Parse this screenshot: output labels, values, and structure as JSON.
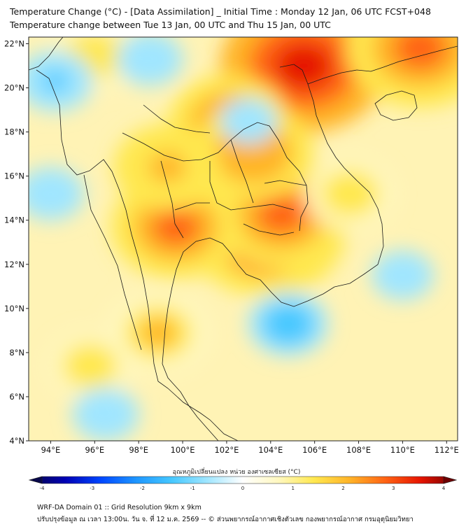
{
  "titles": {
    "line1": "Temperature Change (°C) - [Data Assimilation] _ Initial Time : Monday 12 Jan, 06 UTC FCST+048",
    "line2": "Temperature change between Tue 13 Jan, 00 UTC and Thu 15 Jan, 00 UTC"
  },
  "axes": {
    "lat_labels": [
      "22°N",
      "20°N",
      "18°N",
      "16°N",
      "14°N",
      "12°N",
      "10°N",
      "8°N",
      "6°N",
      "4°N"
    ],
    "lon_labels": [
      "94°E",
      "96°E",
      "98°E",
      "100°E",
      "102°E",
      "104°E",
      "106°E",
      "108°E",
      "110°E",
      "112°E"
    ],
    "lat_values": [
      22,
      20,
      18,
      16,
      14,
      12,
      10,
      8,
      6,
      4
    ],
    "lon_values": [
      94,
      96,
      98,
      100,
      102,
      104,
      106,
      108,
      110,
      112
    ],
    "lat_range": [
      4,
      22.3
    ],
    "lon_range": [
      93,
      112.5
    ]
  },
  "colorbar": {
    "title": "อุณหภูมิเปลี่ยนแปลง หน่วย องศาเซลเซียส (°C)",
    "range": [
      -4,
      4
    ],
    "tick_labels": [
      "-4",
      "-3",
      "-2",
      "-1",
      "0",
      "1",
      "2",
      "3",
      "4"
    ],
    "tick_values": [
      -4,
      -3,
      -2,
      -1,
      0,
      1,
      2,
      3,
      4
    ],
    "colors": [
      "#08084a",
      "#0000b4",
      "#0046ff",
      "#1e96ff",
      "#46c8ff",
      "#a0e6ff",
      "#ffffff",
      "#fff8c0",
      "#ffe850",
      "#ffb428",
      "#ff6414",
      "#e61400",
      "#6e0000"
    ]
  },
  "warm_zones": [
    {
      "lon": 105.5,
      "lat": 21.0,
      "value": 3.2
    },
    {
      "lon": 110.8,
      "lat": 21.8,
      "value": 2.8
    },
    {
      "lon": 103.8,
      "lat": 13.4,
      "value": 3.0
    },
    {
      "lon": 104.5,
      "lat": 14.3,
      "value": 2.6
    },
    {
      "lon": 99.7,
      "lat": 13.7,
      "value": 2.4
    },
    {
      "lon": 102.1,
      "lat": 18.4,
      "value": 2.2
    },
    {
      "lon": 103.2,
      "lat": 17.1,
      "value": 2.2
    },
    {
      "lon": 99.3,
      "lat": 16.4,
      "value": 1.9
    },
    {
      "lon": 98.9,
      "lat": 8.9,
      "value": 1.8
    },
    {
      "lon": 96.0,
      "lat": 21.5,
      "value": 1.5
    },
    {
      "lon": 95.8,
      "lat": 7.4,
      "value": 1.4
    },
    {
      "lon": 107.6,
      "lat": 15.2,
      "value": 1.5
    }
  ],
  "cool_zones": [
    {
      "lon": 94.2,
      "lat": 20.3,
      "value": -1.2
    },
    {
      "lon": 94.0,
      "lat": 15.2,
      "value": -1.0
    },
    {
      "lon": 104.8,
      "lat": 9.3,
      "value": -1.3
    },
    {
      "lon": 96.5,
      "lat": 5.2,
      "value": -1.0
    },
    {
      "lon": 110.0,
      "lat": 11.5,
      "value": -0.9
    },
    {
      "lon": 98.5,
      "lat": 21.3,
      "value": -1.0
    },
    {
      "lon": 103.0,
      "lat": 18.5,
      "value": -0.8
    }
  ],
  "footer": {
    "line1": "WRF-DA Domain 01 :: Grid Resolution 9km x 9km",
    "line2": "ปรับปรุงข้อมูล ณ เวลา 13:00น. วัน จ. ที่ 12 ม.ค. 2569 -- © ส่วนพยากรณ์อากาศเชิงตัวเลข กองพยากรณ์อากาศ กรมอุตุนิยมวิทยา"
  }
}
